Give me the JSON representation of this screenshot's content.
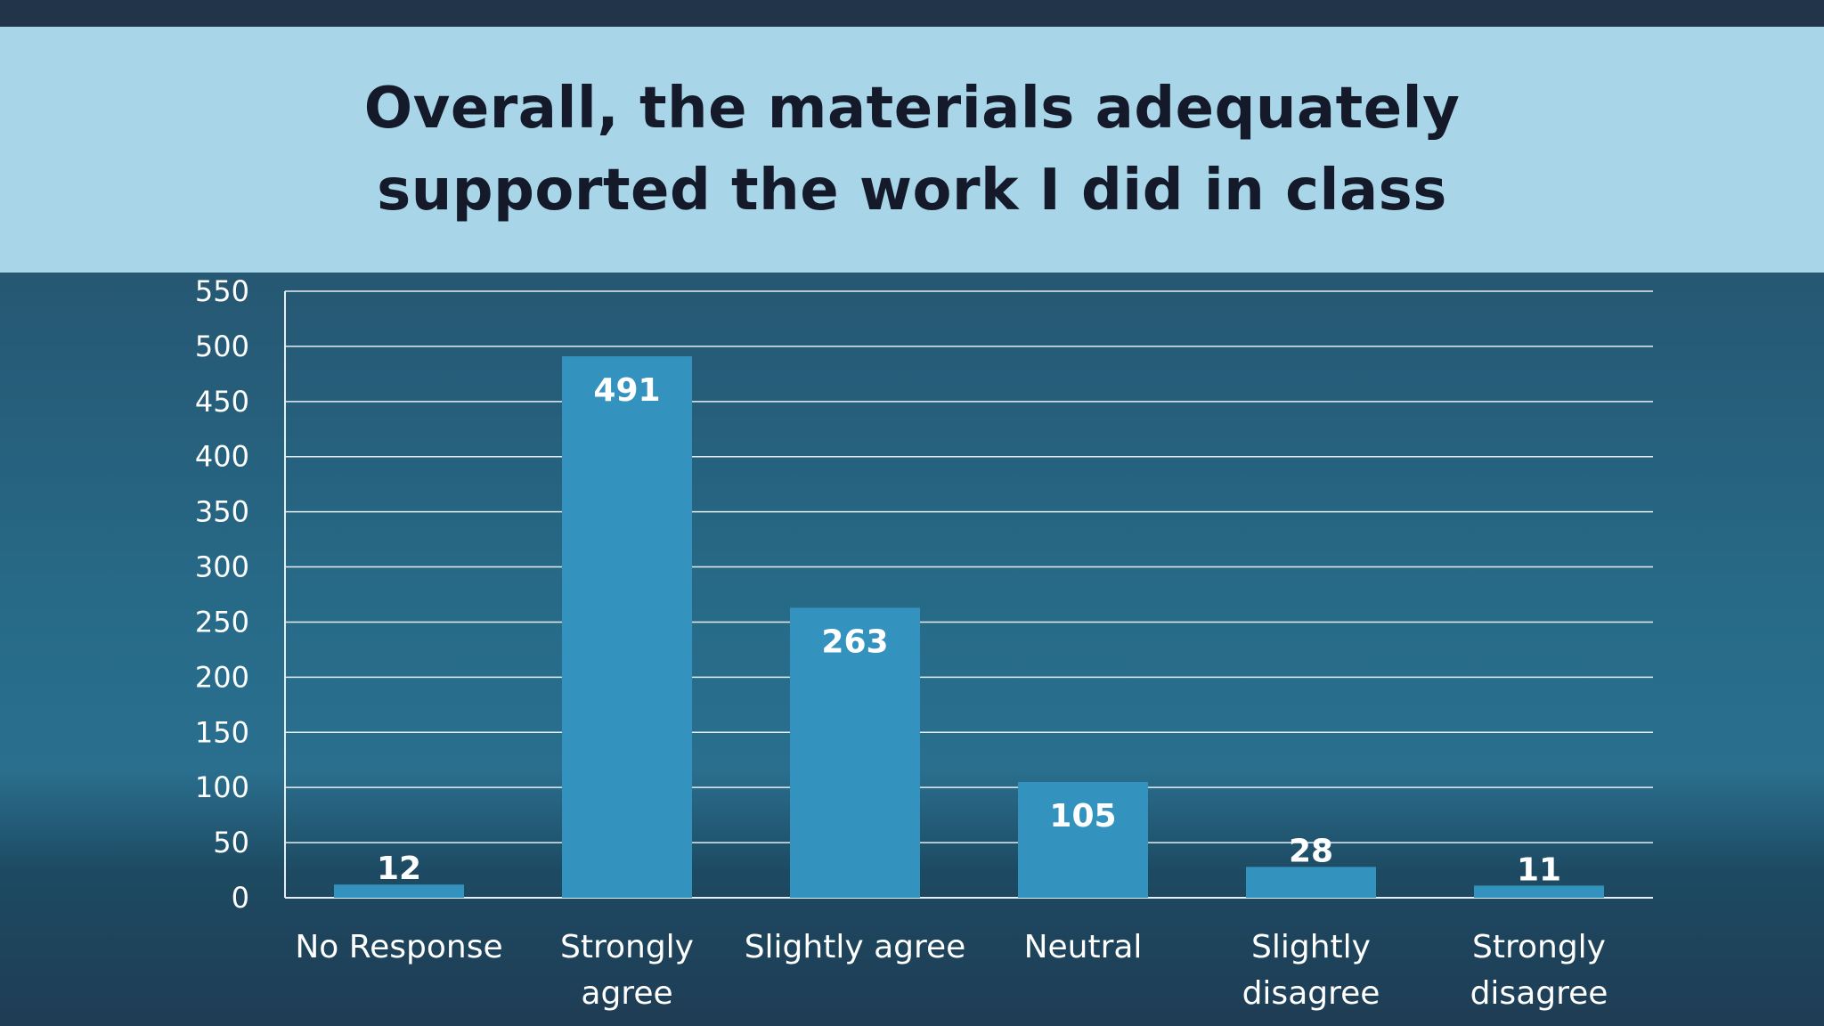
{
  "chart_data": {
    "type": "bar",
    "title": "Overall, the materials adequately supported the work I did in class",
    "title_lines": [
      "Overall, the materials adequately",
      "supported the work I did in class"
    ],
    "categories": [
      "No Response",
      "Strongly agree",
      "Slightly agree",
      "Neutral",
      "Slightly disagree",
      "Strongly disagree"
    ],
    "category_lines": [
      [
        "No Response"
      ],
      [
        "Strongly",
        "agree"
      ],
      [
        "Slightly agree"
      ],
      [
        "Neutral"
      ],
      [
        "Slightly",
        "disagree"
      ],
      [
        "Strongly",
        "disagree"
      ]
    ],
    "values": [
      12,
      491,
      263,
      105,
      28,
      11
    ],
    "ylim": [
      0,
      550
    ],
    "yticks": [
      0,
      50,
      100,
      150,
      200,
      250,
      300,
      350,
      400,
      450,
      500,
      550
    ],
    "xlabel": "",
    "ylabel": "",
    "grid": true,
    "legend": "none",
    "data_labels": true,
    "colors": {
      "bar": "#3493be",
      "grid": "#e6eef4",
      "title_band": "#a8d5e7",
      "title_text": "#141a2a",
      "top_strip": "#22344a",
      "label_text": "#ffffff"
    }
  }
}
